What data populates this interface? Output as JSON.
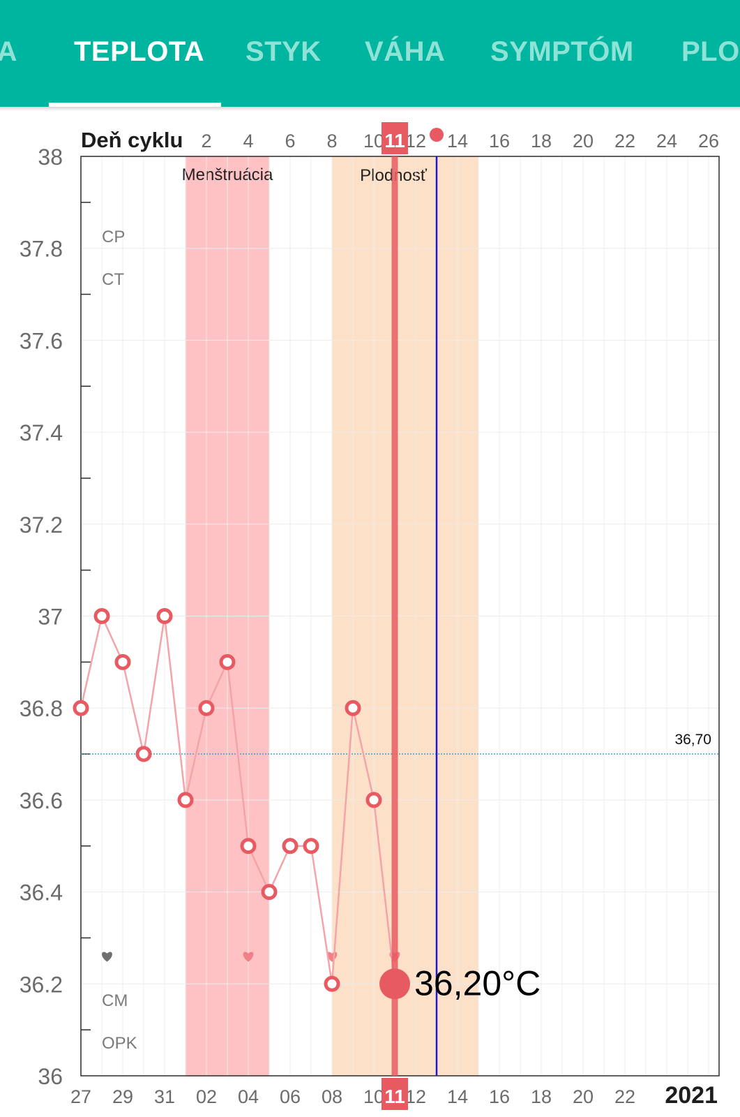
{
  "tabs": [
    {
      "label": "IA",
      "active": false
    },
    {
      "label": "TEPLOTA",
      "active": true
    },
    {
      "label": "STYK",
      "active": false
    },
    {
      "label": "VÁHA",
      "active": false
    },
    {
      "label": "SYMPTÓM",
      "active": false
    },
    {
      "label": "PLOD",
      "active": false
    }
  ],
  "colors": {
    "teal": "#00b5a0",
    "temperature": "#e85a62",
    "menstruation": "#ffc2c4",
    "fertility": "#fde0c8",
    "ovulation_line": "#1a1ad6",
    "coverline": "#3fa0d0"
  },
  "chart_data": {
    "type": "line",
    "title": "",
    "top_axis_label": "Deň cyklu",
    "top_ticks": [
      "2",
      "4",
      "6",
      "8",
      "10",
      "12",
      "14",
      "16",
      "18",
      "20",
      "22",
      "24",
      "26"
    ],
    "bottom_ticks": [
      "27",
      "29",
      "31",
      "02",
      "04",
      "06",
      "08",
      "10",
      "12",
      "14",
      "16",
      "18",
      "20",
      "22"
    ],
    "year_label": "2021",
    "y_ticks": [
      "38",
      "37.8",
      "37.6",
      "37.4",
      "37.2",
      "37",
      "36.8",
      "36.6",
      "36.4",
      "36.2",
      "36"
    ],
    "ylim": [
      36,
      38
    ],
    "x_range_days": [
      0,
      30
    ],
    "series": [
      {
        "values": [
          {
            "day": 0,
            "temp": 36.8
          },
          {
            "day": 1,
            "temp": 37.0
          },
          {
            "day": 2,
            "temp": 36.9
          },
          {
            "day": 3,
            "temp": 36.7
          },
          {
            "day": 4,
            "temp": 37.0
          },
          {
            "day": 5,
            "temp": 36.6
          },
          {
            "day": 6,
            "temp": 36.8
          },
          {
            "day": 7,
            "temp": 36.9
          },
          {
            "day": 8,
            "temp": 36.5
          },
          {
            "day": 9,
            "temp": 36.4
          },
          {
            "day": 10,
            "temp": 36.5
          },
          {
            "day": 11,
            "temp": 36.5
          },
          {
            "day": 12,
            "temp": 36.2
          },
          {
            "day": 13,
            "temp": 36.8
          },
          {
            "day": 14,
            "temp": 36.6
          },
          {
            "day": 15,
            "temp": 36.2
          }
        ]
      }
    ],
    "hearts": [
      {
        "day": 1.25,
        "color": "#6f6f6f"
      },
      {
        "day": 8,
        "color": "#f08088"
      },
      {
        "day": 12,
        "color": "#f08088"
      },
      {
        "day": 15,
        "color": "#f08088"
      }
    ],
    "spotting_day": 17,
    "row_labels": {
      "cp": "CP",
      "ct": "CT",
      "cm": "CM",
      "opk": "OPK"
    },
    "menstruation": {
      "label": "Menštruácia",
      "start_day": 5,
      "end_day": 9
    },
    "fertility": {
      "label": "Plodnosť",
      "start_day": 12,
      "end_day": 19
    },
    "coverline": {
      "value": 36.7,
      "label": "36,70"
    },
    "ovulation_day": 17,
    "selected": {
      "day": 15,
      "badge": "11",
      "value_label": "36,20°C"
    }
  }
}
